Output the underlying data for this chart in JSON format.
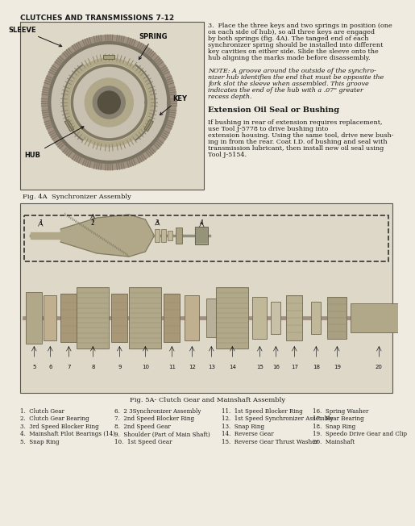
{
  "page_header": "CLUTCHES AND TRANSMISSIONS 7-12",
  "bg_color": "#f0ebe0",
  "text_color": "#1a1a1a",
  "top_text_block": [
    "3.  Place the three keys and two springs in position (one",
    "on each side of hub), so all three keys are engaged",
    "by both springs (fig. 4A). The tanged end of each",
    "synchronizer spring should be installed into different",
    "key cavities on either side. Slide the sleeve onto the",
    "hub aligning the marks made before disassembly.",
    "",
    "NOTE: A groove around the outside of the synchro-",
    "nizer hub identifies the end that must be opposite the",
    "fork slot the sleeve when assembled. This groove",
    "indicates the end of the hub with a .07\" greater",
    "recess depth.",
    "",
    "Extension Oil Seal or Bushing",
    "",
    "If bushing in rear of extension requires replacement,",
    "use Tool J-5778 to drive bushing into",
    "extension housing. Using the same tool, drive new bush-",
    "ing in from the rear. Coat I.D. of bushing and seal with",
    "transmission lubricant, then install new oil seal using",
    "Tool J-5154."
  ],
  "fig4a_label": "Fig. 4A  Synchronizer Assembly",
  "fig5a_label": "Fig. 5A- Clutch Gear and Mainshaft Assembly",
  "parts_list": [
    [
      "1.  Clutch Gear",
      "6.  2 3Synchronizer Assembly",
      "11.  1st Speed Blocker Ring",
      "16.  Spring Washer"
    ],
    [
      "2.  Clutch Gear Bearing",
      "7.  2nd Speed Blocker Ring",
      "12.  1st Speed Synchronizer Assembly",
      "17.  Rear Bearing"
    ],
    [
      "3.  3rd Speed Blocker Ring",
      "8.  2nd Speed Gear",
      "13.  Snap Ring",
      "18.  Snap Ring"
    ],
    [
      "4.  Mainshaft Pilot Bearings (14)",
      "9.  Shoulder (Part of Main Shaft)",
      "14.  Reverse Gear",
      "19.  Speedo Drive Gear and Clip"
    ],
    [
      "5.  Snap Ring",
      "10.  1st Speed Gear",
      "15.  Reverse Gear Thrust Washer",
      "20.  Mainshaft"
    ]
  ]
}
